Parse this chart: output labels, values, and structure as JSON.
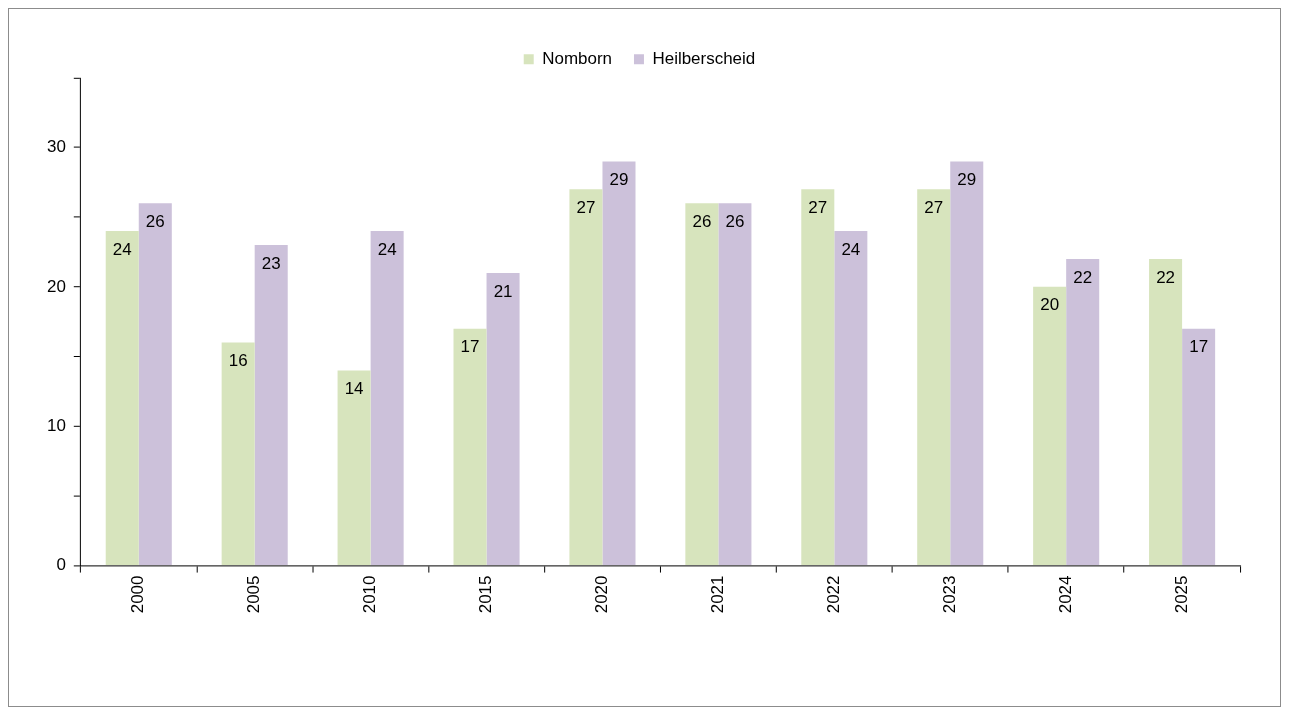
{
  "chart_data": {
    "type": "bar",
    "categories": [
      "2000",
      "2005",
      "2010",
      "2015",
      "2020",
      "2021",
      "2022",
      "2023",
      "2024",
      "2025"
    ],
    "series": [
      {
        "name": "Nomborn",
        "color": "#d7e4bd",
        "values": [
          24,
          16,
          14,
          17,
          27,
          26,
          27,
          27,
          20,
          22
        ]
      },
      {
        "name": "Heilberscheid",
        "color": "#ccc1da",
        "values": [
          26,
          23,
          24,
          21,
          29,
          26,
          24,
          29,
          22,
          17
        ]
      }
    ],
    "ylim": [
      0,
      35
    ],
    "yticks": [
      0,
      {
        "value": 5,
        "label": null
      },
      10,
      {
        "value": 15,
        "label": null
      },
      20,
      {
        "value": 25,
        "label": null
      },
      30,
      {
        "value": 35,
        "label": null
      }
    ],
    "data_labels": true,
    "legend": "top",
    "grid": false
  }
}
